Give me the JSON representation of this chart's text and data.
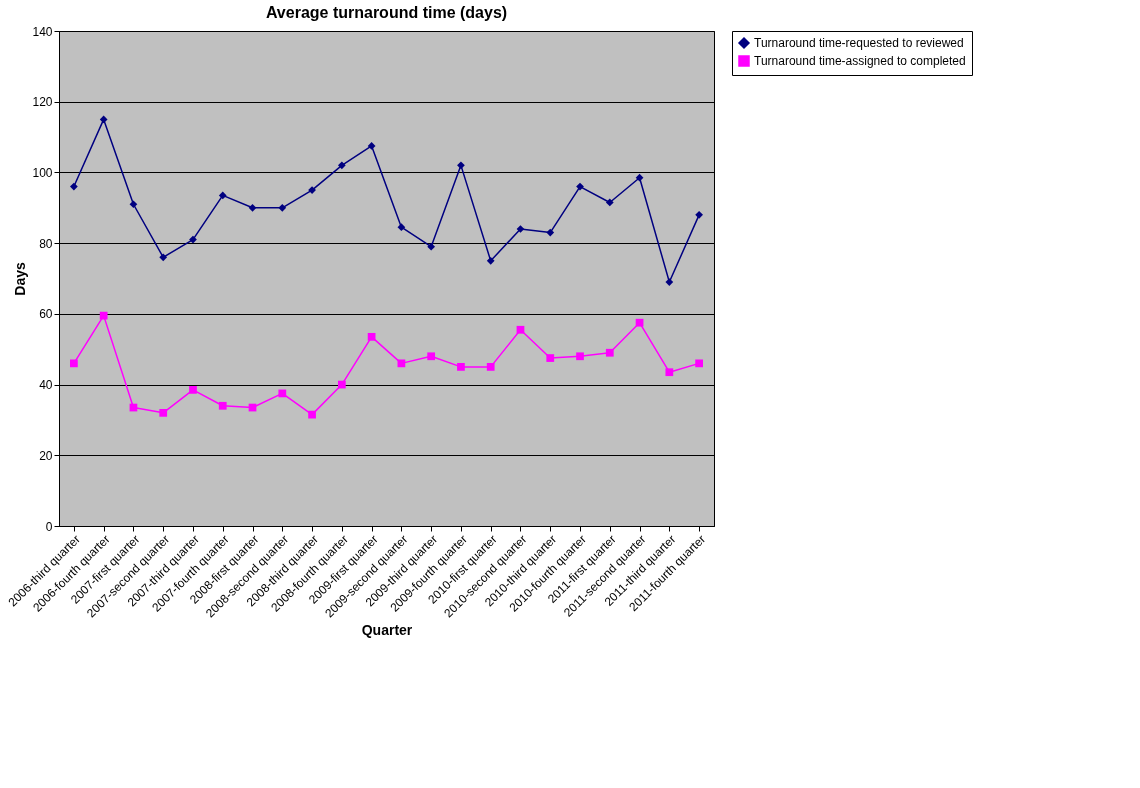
{
  "chart_data": {
    "type": "line",
    "title": "Average turnaround time (days)",
    "xlabel": "Quarter",
    "ylabel": "Days",
    "categories": [
      "2006-third quarter",
      "2006-fourth quarter",
      "2007-first quarter",
      "2007-second quarter",
      "2007-third quarter",
      "2007-fourth quarter",
      "2008-first quarter",
      "2008-second quarter",
      "2008-third quarter",
      "2008-fourth quarter",
      "2009-first quarter",
      "2009-second quarter",
      "2009-third quarter",
      "2009-fourth quarter",
      "2010-first quarter",
      "2010-second quarter",
      "2010-third quarter",
      "2010-fourth quarter",
      "2011-first quarter",
      "2011-second quarter",
      "2011-third quarter",
      "2011-fourth quarter"
    ],
    "series": [
      {
        "name": "Turnaround time-requested to reviewed",
        "color": "#000080",
        "marker": "diamond",
        "values": [
          96,
          115,
          91,
          76,
          81,
          93.5,
          90,
          90,
          95,
          102,
          107.5,
          84.5,
          79,
          102,
          75,
          84,
          83,
          96,
          91.5,
          98.5,
          69,
          88
        ]
      },
      {
        "name": "Turnaround time-assigned to completed",
        "color": "#ff00ff",
        "marker": "square",
        "values": [
          46,
          59.5,
          33.5,
          32,
          38.5,
          34,
          33.5,
          37.5,
          31.5,
          40,
          53.5,
          46,
          48,
          45,
          45,
          55.5,
          47.5,
          48,
          49,
          57.5,
          43.5,
          46
        ]
      }
    ],
    "ylim": [
      0,
      140
    ],
    "yticks": [
      0,
      20,
      40,
      60,
      80,
      100,
      120,
      140
    ],
    "grid": "y",
    "legend": "right",
    "line_style": "solid"
  }
}
